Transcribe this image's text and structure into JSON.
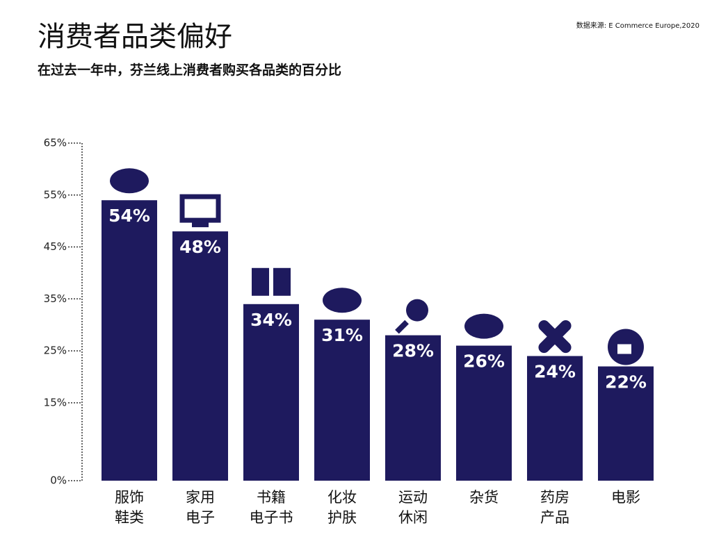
{
  "chart_data": {
    "type": "bar",
    "title": "消费者品类偏好",
    "subtitle": "在过去一年中，芬兰线上消费者购买各品类的百分比",
    "source": "数据来源: E Commerce Europe,2020",
    "categories": [
      "服饰\n鞋类",
      "家用\n电子",
      "书籍\n电子书",
      "化妆\n护肤",
      "运动\n休闲",
      "杂货",
      "药房\n产品",
      "电影"
    ],
    "values": [
      54,
      48,
      34,
      31,
      28,
      26,
      24,
      22
    ],
    "value_labels": [
      "54%",
      "48%",
      "34%",
      "31%",
      "28%",
      "26%",
      "24%",
      "22%"
    ],
    "color": "#1e1a5e",
    "ylim": [
      0,
      65
    ],
    "yticks": [
      {
        "value": 0,
        "label": "0%"
      },
      {
        "value": 15,
        "label": "15%"
      },
      {
        "value": 25,
        "label": "25%"
      },
      {
        "value": 35,
        "label": "35%"
      },
      {
        "value": 45,
        "label": "45%"
      },
      {
        "value": 55,
        "label": "55%"
      },
      {
        "value": 65,
        "label": "65%"
      }
    ]
  }
}
